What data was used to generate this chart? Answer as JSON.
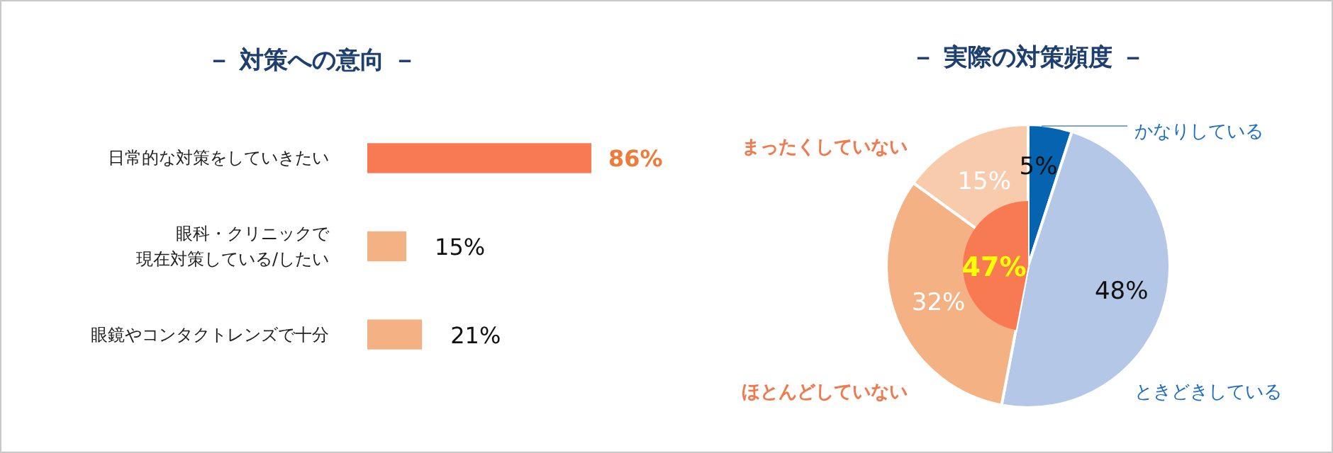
{
  "chart_data": [
    {
      "type": "bar",
      "orientation": "horizontal",
      "title": "－ 対策への意向 －",
      "categories": [
        "日常的な対策をしていきたい",
        "眼科・クリニックで現在対策している/したい",
        "眼鏡やコンタクトレンズで十分"
      ],
      "values": [
        86,
        15,
        21
      ],
      "colors": [
        "#f87a52",
        "#f4b183",
        "#f4b183"
      ],
      "value_labels": [
        "86%",
        "15%",
        "21%"
      ]
    },
    {
      "type": "pie",
      "title": "－ 実際の対策頻度 －",
      "categories": [
        "かなりしている",
        "ときどきしている",
        "ほとんどしていない",
        "まったくしていない"
      ],
      "values": [
        5,
        48,
        32,
        15
      ],
      "colors": [
        "#0563b0",
        "#b4c7e7",
        "#f4b183",
        "#f8cbad"
      ],
      "value_labels": [
        "5%",
        "48%",
        "32%",
        "15%"
      ],
      "annotations": [
        "47%"
      ]
    }
  ]
}
